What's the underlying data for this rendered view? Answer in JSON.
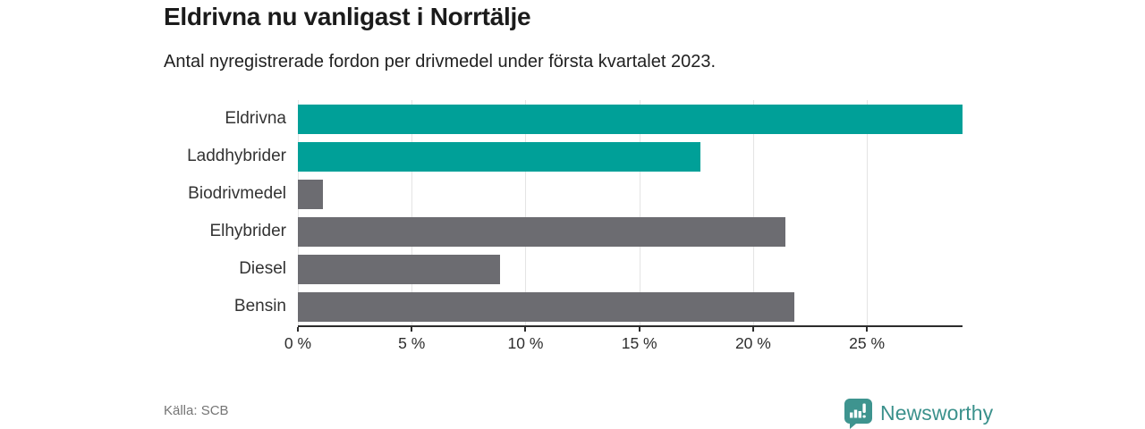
{
  "title": "Eldrivna nu vanligast i Norrtälje",
  "subtitle": "Antal nyregistrerade fordon per drivmedel under första kvartalet 2023.",
  "source": "Källa: SCB",
  "brand": {
    "name": "Newsworthy",
    "icon": "bar-chart-speech-bubble-icon",
    "color": "#3e948f",
    "text_color": "#3b918c"
  },
  "colors": {
    "highlight_bar": "#00a098",
    "default_bar": "#6c6c71",
    "gridline": "#e4e4e4",
    "axis": "#2c2c2c",
    "category_label": "#333333",
    "tick_label": "#2e2e2e",
    "title": "#1b1b1b",
    "subtitle": "#212121",
    "source_text": "#757575"
  },
  "chart_data": {
    "type": "bar",
    "orientation": "horizontal",
    "title": "Eldrivna nu vanligast i Norrtälje",
    "subtitle": "Antal nyregistrerade fordon per drivmedel under första kvartalet 2023.",
    "xlabel": "",
    "ylabel": "",
    "categories": [
      "Eldrivna",
      "Laddhybrider",
      "Biodrivmedel",
      "Elhybrider",
      "Diesel",
      "Bensin"
    ],
    "values": [
      29.2,
      17.7,
      1.1,
      21.4,
      8.9,
      21.8
    ],
    "unit": "%",
    "bar_colors": [
      "#00a098",
      "#00a098",
      "#6c6c71",
      "#6c6c71",
      "#6c6c71",
      "#6c6c71"
    ],
    "xlim": [
      0,
      29.2
    ],
    "xticks": [
      0,
      5,
      10,
      15,
      20,
      25
    ],
    "xtick_labels": [
      "0 %",
      "5 %",
      "10 %",
      "15 %",
      "20 %",
      "25 %"
    ],
    "grid": true,
    "legend": false,
    "source": "Källa: SCB"
  }
}
